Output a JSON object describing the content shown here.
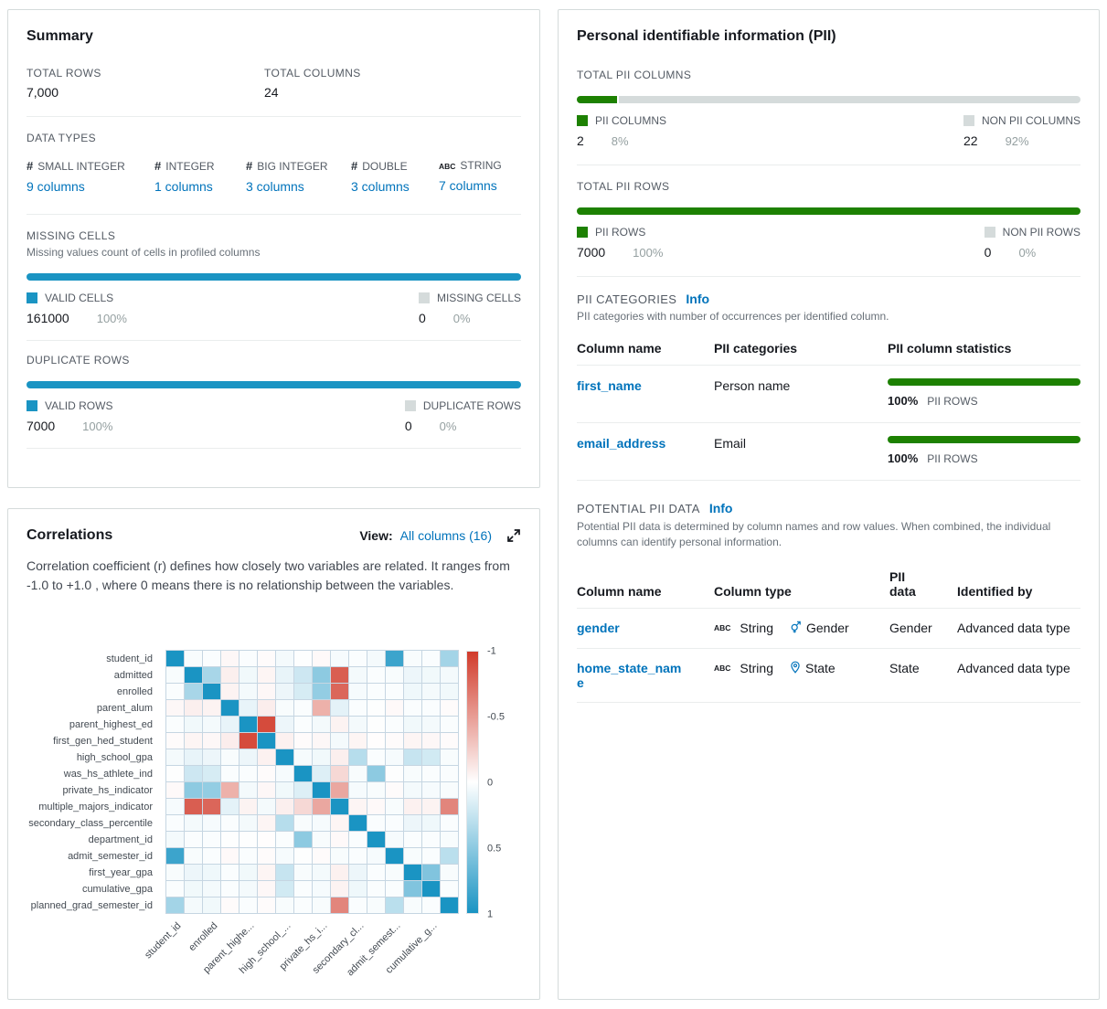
{
  "colors": {
    "bar_blue": "#1a94c3",
    "bar_green": "#1d8102",
    "bar_gray": "#d5dbdb",
    "link_blue": "#0073bb"
  },
  "summary": {
    "title": "Summary",
    "total_rows_label": "TOTAL ROWS",
    "total_rows": "7,000",
    "total_columns_label": "TOTAL COLUMNS",
    "total_columns": "24",
    "data_types_label": "DATA TYPES",
    "data_types": [
      {
        "icon": "#",
        "name": "SMALL INTEGER",
        "link": "9 columns"
      },
      {
        "icon": "#",
        "name": "INTEGER",
        "link": "1 columns"
      },
      {
        "icon": "#",
        "name": "BIG INTEGER",
        "link": "3 columns"
      },
      {
        "icon": "#",
        "name": "DOUBLE",
        "link": "3 columns"
      },
      {
        "icon": "ABC",
        "name": "STRING",
        "link": "7 columns"
      }
    ],
    "missing_cells": {
      "label": "MISSING CELLS",
      "description": "Missing values count of cells in profiled columns",
      "valid_label": "VALID CELLS",
      "valid_count": "161000",
      "valid_pct": "100%",
      "missing_label": "MISSING CELLS",
      "missing_count": "0",
      "missing_pct": "0%",
      "bar_pct": 100
    },
    "duplicate_rows": {
      "label": "DUPLICATE ROWS",
      "valid_label": "VALID ROWS",
      "valid_count": "7000",
      "valid_pct": "100%",
      "dup_label": "DUPLICATE ROWS",
      "dup_count": "0",
      "dup_pct": "0%",
      "bar_pct": 100
    }
  },
  "pii": {
    "title": "Personal identifiable information (PII)",
    "total_pii_columns": {
      "label": "TOTAL PII COLUMNS",
      "pii_label": "PII COLUMNS",
      "pii_count": "2",
      "pii_pct": "8%",
      "non_label": "NON PII COLUMNS",
      "non_count": "22",
      "non_pct": "92%",
      "bar_pct": 8
    },
    "total_pii_rows": {
      "label": "TOTAL PII ROWS",
      "pii_label": "PII ROWS",
      "pii_count": "7000",
      "pii_pct": "100%",
      "non_label": "NON PII ROWS",
      "non_count": "0",
      "non_pct": "0%",
      "bar_pct": 100
    },
    "categories": {
      "label": "PII CATEGORIES",
      "info": "Info",
      "description": "PII categories with number of occurrences per identified column.",
      "headers": [
        "Column name",
        "PII categories",
        "PII column statistics"
      ],
      "rows": [
        {
          "column": "first_name",
          "category": "Person name",
          "stat_pct": "100%",
          "stat_label": "PII ROWS",
          "bar_pct": 100
        },
        {
          "column": "email_address",
          "category": "Email",
          "stat_pct": "100%",
          "stat_label": "PII ROWS",
          "bar_pct": 100
        }
      ]
    },
    "potential": {
      "label": "POTENTIAL PII DATA",
      "info": "Info",
      "description": "Potential PII data is determined by column names and row values. When combined, the individual columns can identify personal information.",
      "headers": [
        "Column name",
        "Column type",
        "PII data",
        "Identified by"
      ],
      "rows": [
        {
          "column": "gender",
          "type_icon": "ABC",
          "type": "String",
          "subtype_icon": "gender-icon",
          "subtype": "Gender",
          "pii_data": "Gender",
          "identified_by": "Advanced data type"
        },
        {
          "column": "home_state_name",
          "type_icon": "ABC",
          "type": "String",
          "subtype_icon": "location-pin-icon",
          "subtype": "State",
          "pii_data": "State",
          "identified_by": "Advanced data type"
        }
      ]
    }
  },
  "correlations": {
    "title": "Correlations",
    "view_label": "View:",
    "view_link": "All columns (16)",
    "expand_icon": "expand-icon",
    "description": "Correlation coefficient (r) defines how closely two variables are related. It ranges from -1.0 to +1.0 , where 0 means there is no relationship between the variables."
  },
  "chart_data": {
    "type": "heatmap",
    "title": "Correlations (r matrix, 16 columns)",
    "value_range": [
      -1,
      1
    ],
    "legend_position": "right",
    "rows": [
      "student_id",
      "admitted",
      "enrolled",
      "parent_alum",
      "parent_highest_ed",
      "first_gen_hed_student",
      "high_school_gpa",
      "was_hs_athlete_ind",
      "private_hs_indicator",
      "multiple_majors_indicator",
      "secondary_class_percentile",
      "department_id",
      "admit_semester_id",
      "first_year_gpa",
      "cumulative_gpa",
      "planned_grad_semester_id"
    ],
    "xticks": [
      {
        "col": 0,
        "label": "student_id"
      },
      {
        "col": 2,
        "label": "enrolled"
      },
      {
        "col": 4,
        "label": "parent_highe..."
      },
      {
        "col": 6,
        "label": "high_school_..."
      },
      {
        "col": 8,
        "label": "private_hs_i..."
      },
      {
        "col": 10,
        "label": "secondary_cl..."
      },
      {
        "col": 12,
        "label": "admit_semest..."
      },
      {
        "col": 14,
        "label": "cumulative_g..."
      }
    ],
    "colorbar": {
      "ticks": [
        "-1",
        "-0.5",
        "0",
        "0.5",
        "1"
      ],
      "negative_color": "#d13b2b",
      "positive_color": "#1a94c3",
      "zero_color": "#ffffff"
    },
    "matrix": [
      [
        1,
        0.03,
        0.02,
        -0.04,
        0.02,
        -0.02,
        0.05,
        0.01,
        -0.03,
        0.04,
        0.02,
        0.05,
        0.85,
        0.03,
        0.02,
        0.4
      ],
      [
        0.03,
        1,
        0.38,
        -0.08,
        0.06,
        -0.05,
        0.1,
        0.22,
        0.5,
        -0.82,
        0.05,
        0.02,
        0.03,
        0.08,
        0.06,
        0.05
      ],
      [
        0.02,
        0.38,
        1,
        -0.06,
        0.05,
        -0.04,
        0.08,
        0.18,
        0.47,
        -0.78,
        0.04,
        0.02,
        0.02,
        0.07,
        0.05,
        0.06
      ],
      [
        -0.04,
        -0.08,
        -0.06,
        1,
        0.1,
        -0.09,
        0.03,
        0.02,
        -0.4,
        0.12,
        0.02,
        0.01,
        -0.03,
        0.02,
        0.02,
        -0.02
      ],
      [
        0.02,
        0.06,
        0.05,
        0.1,
        1,
        -0.92,
        0.08,
        0.02,
        0.05,
        -0.06,
        0.05,
        0.01,
        0.02,
        0.06,
        0.05,
        0.02
      ],
      [
        -0.02,
        -0.05,
        -0.04,
        -0.09,
        -0.92,
        1,
        -0.07,
        -0.02,
        -0.04,
        0.05,
        -0.05,
        -0.01,
        -0.02,
        -0.05,
        -0.04,
        -0.02
      ],
      [
        0.05,
        0.1,
        0.08,
        0.03,
        0.08,
        -0.07,
        1,
        0.04,
        0.06,
        -0.08,
        0.32,
        0.02,
        0.04,
        0.25,
        0.2,
        0.03
      ],
      [
        0.01,
        0.22,
        0.18,
        0.02,
        0.02,
        -0.02,
        0.04,
        1,
        0.15,
        -0.2,
        0.03,
        0.5,
        0.01,
        0.03,
        0.02,
        0.02
      ],
      [
        -0.03,
        0.5,
        0.47,
        -0.4,
        0.05,
        -0.04,
        0.06,
        0.15,
        1,
        -0.45,
        0.04,
        0.03,
        -0.02,
        0.05,
        0.04,
        0.03
      ],
      [
        0.04,
        -0.82,
        -0.78,
        0.12,
        -0.06,
        0.05,
        -0.08,
        -0.2,
        -0.45,
        1,
        -0.05,
        -0.03,
        0.03,
        -0.07,
        -0.06,
        -0.62
      ],
      [
        0.02,
        0.05,
        0.04,
        0.02,
        0.05,
        -0.05,
        0.32,
        0.03,
        0.04,
        -0.05,
        1,
        0.02,
        0.02,
        0.08,
        0.07,
        0.02
      ],
      [
        0.05,
        0.02,
        0.02,
        0.01,
        0.01,
        -0.01,
        0.02,
        0.5,
        0.03,
        -0.03,
        0.02,
        1,
        0.04,
        0.02,
        0.02,
        0.03
      ],
      [
        0.85,
        0.03,
        0.02,
        -0.03,
        0.02,
        -0.02,
        0.04,
        0.01,
        -0.02,
        0.03,
        0.02,
        0.04,
        1,
        0.03,
        0.02,
        0.3
      ],
      [
        0.03,
        0.08,
        0.07,
        0.02,
        0.06,
        -0.05,
        0.25,
        0.03,
        0.05,
        -0.07,
        0.08,
        0.02,
        0.03,
        1,
        0.55,
        0.03
      ],
      [
        0.02,
        0.06,
        0.05,
        0.02,
        0.05,
        -0.04,
        0.2,
        0.02,
        0.04,
        -0.06,
        0.07,
        0.02,
        0.02,
        0.55,
        1,
        0.02
      ],
      [
        0.4,
        0.05,
        0.06,
        -0.02,
        0.02,
        -0.02,
        0.03,
        0.02,
        0.03,
        -0.62,
        0.02,
        0.03,
        0.3,
        0.03,
        0.02,
        1
      ]
    ]
  }
}
